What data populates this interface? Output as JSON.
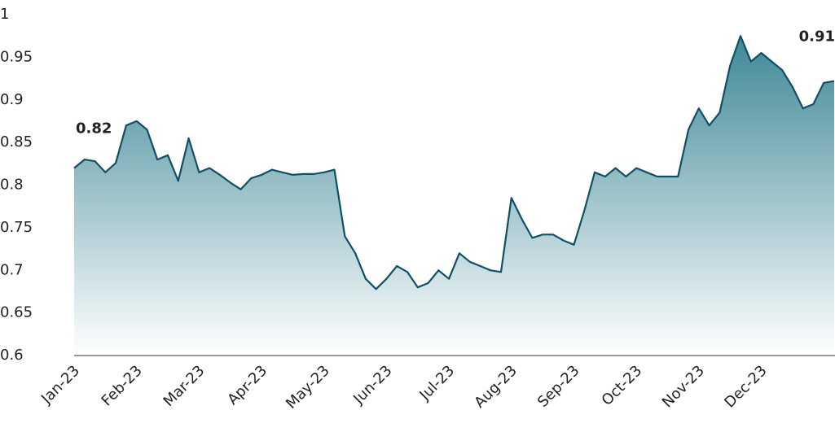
{
  "chart_data": {
    "type": "area",
    "categories": [
      "Jan-23",
      null,
      null,
      null,
      null,
      null,
      "Feb-23",
      null,
      null,
      null,
      null,
      null,
      "Mar-23",
      null,
      null,
      null,
      null,
      null,
      "Apr-23",
      null,
      null,
      null,
      null,
      null,
      "May-23",
      null,
      null,
      null,
      null,
      null,
      "Jun-23",
      null,
      null,
      null,
      null,
      null,
      "Jul-23",
      null,
      null,
      null,
      null,
      null,
      "Aug-23",
      null,
      null,
      null,
      null,
      null,
      "Sep-23",
      null,
      null,
      null,
      null,
      null,
      "Oct-23",
      null,
      null,
      null,
      null,
      null,
      "Nov-23",
      null,
      null,
      null,
      null,
      null,
      "Dec-23",
      null,
      null,
      null,
      null,
      null,
      null,
      null
    ],
    "values": [
      0.82,
      0.83,
      0.828,
      0.815,
      0.826,
      0.87,
      0.875,
      0.865,
      0.83,
      0.835,
      0.805,
      0.855,
      0.815,
      0.82,
      0.812,
      0.803,
      0.795,
      0.808,
      0.812,
      0.818,
      0.815,
      0.812,
      0.813,
      0.813,
      0.815,
      0.818,
      0.74,
      0.72,
      0.69,
      0.678,
      0.69,
      0.705,
      0.698,
      0.68,
      0.685,
      0.7,
      0.69,
      0.72,
      0.71,
      0.705,
      0.7,
      0.698,
      0.785,
      0.76,
      0.738,
      0.742,
      0.742,
      0.735,
      0.73,
      0.77,
      0.815,
      0.81,
      0.82,
      0.81,
      0.82,
      0.815,
      0.81,
      0.81,
      0.81,
      0.865,
      0.89,
      0.87,
      0.885,
      0.94,
      0.975,
      0.945,
      0.955,
      0.945,
      0.935,
      0.915,
      0.89,
      0.895,
      0.92,
      0.922
    ],
    "color": "#0e5068",
    "ylim": [
      0.6,
      1
    ],
    "yticks": [
      0.6,
      0.65,
      0.7,
      0.75,
      0.8,
      0.85,
      0.9,
      0.95,
      1
    ],
    "annotations": [
      {
        "text": "0.82"
      },
      {
        "text": "0.91"
      }
    ]
  }
}
